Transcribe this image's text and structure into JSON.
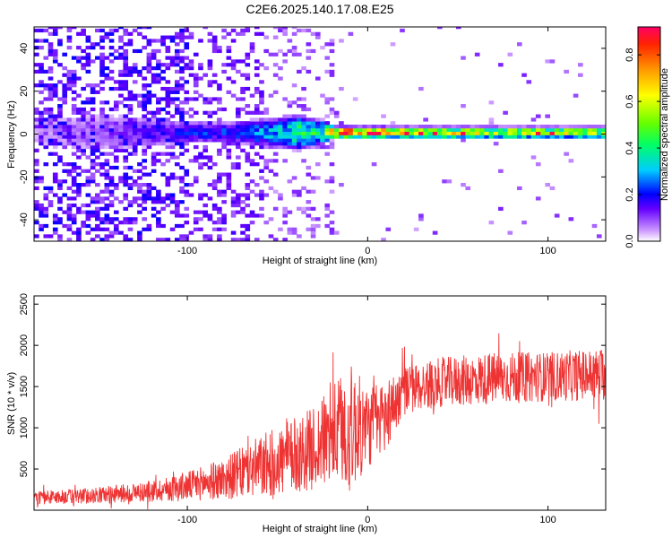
{
  "title": "C2E6.2025.140.17.08.E25",
  "chart_data": [
    {
      "type": "heatmap",
      "xlabel": "Height of straight line (km)",
      "ylabel": "Frequency (Hz)",
      "xlim": [
        -185,
        132
      ],
      "ylim": [
        -50,
        50
      ],
      "xticks": [
        -100,
        0,
        100
      ],
      "xtick_labels": [
        "-100",
        "0",
        "100"
      ],
      "yticks": [
        -40,
        -20,
        0,
        20,
        40
      ],
      "ytick_labels": [
        "-40",
        "-20",
        "0",
        "20",
        "40"
      ],
      "colorbar": {
        "label": "Normalized spectral amplitude",
        "range": [
          0,
          0.92
        ],
        "ticks": [
          0.0,
          0.2,
          0.4,
          0.6,
          0.8
        ],
        "tick_labels": [
          "0.0",
          "0.2",
          "0.4",
          "0.6",
          "0.8"
        ]
      },
      "ridge": {
        "frequency": 0,
        "profile": [
          {
            "x": -185,
            "amp": 0.05,
            "width": 10
          },
          {
            "x": -140,
            "amp": 0.12,
            "width": 9
          },
          {
            "x": -110,
            "amp": 0.2,
            "width": 6
          },
          {
            "x": -80,
            "amp": 0.25,
            "width": 5
          },
          {
            "x": -50,
            "amp": 0.35,
            "width": 8
          },
          {
            "x": -40,
            "amp": 0.45,
            "width": 9
          },
          {
            "x": -25,
            "amp": 0.45,
            "width": 6
          },
          {
            "x": -20,
            "amp": 0.9,
            "width": 3
          },
          {
            "x": 0,
            "amp": 0.9,
            "width": 3
          },
          {
            "x": 20,
            "amp": 0.7,
            "width": 3
          },
          {
            "x": 132,
            "amp": 0.6,
            "width": 3
          }
        ]
      },
      "grid": false
    },
    {
      "type": "line",
      "xlabel": "Height of straight line (km)",
      "ylabel": "SNR (10 * v/v)",
      "xlim": [
        -185,
        132
      ],
      "ylim": [
        0,
        2600
      ],
      "xticks": [
        -100,
        0,
        100
      ],
      "xtick_labels": [
        "-100",
        "0",
        "100"
      ],
      "yticks": [
        500,
        1000,
        1500,
        2000,
        2500
      ],
      "ytick_labels": [
        "500",
        "1000",
        "1500",
        "2000",
        "2500"
      ],
      "color": "#ee3333",
      "envelope": [
        {
          "x": -185,
          "mean": 150,
          "spread": 80
        },
        {
          "x": -150,
          "mean": 180,
          "spread": 100
        },
        {
          "x": -120,
          "mean": 230,
          "spread": 130
        },
        {
          "x": -100,
          "mean": 290,
          "spread": 180
        },
        {
          "x": -80,
          "mean": 380,
          "spread": 250
        },
        {
          "x": -60,
          "mean": 520,
          "spread": 380
        },
        {
          "x": -45,
          "mean": 620,
          "spread": 450
        },
        {
          "x": -30,
          "mean": 750,
          "spread": 500
        },
        {
          "x": -20,
          "mean": 900,
          "spread": 600
        },
        {
          "x": -10,
          "mean": 1000,
          "spread": 800
        },
        {
          "x": 0,
          "mean": 1000,
          "spread": 500
        },
        {
          "x": 10,
          "mean": 1150,
          "spread": 450
        },
        {
          "x": 20,
          "mean": 1450,
          "spread": 300
        },
        {
          "x": 40,
          "mean": 1550,
          "spread": 300
        },
        {
          "x": 70,
          "mean": 1600,
          "spread": 320
        },
        {
          "x": 100,
          "mean": 1620,
          "spread": 300
        },
        {
          "x": 132,
          "mean": 1650,
          "spread": 320
        }
      ],
      "grid": false
    }
  ]
}
